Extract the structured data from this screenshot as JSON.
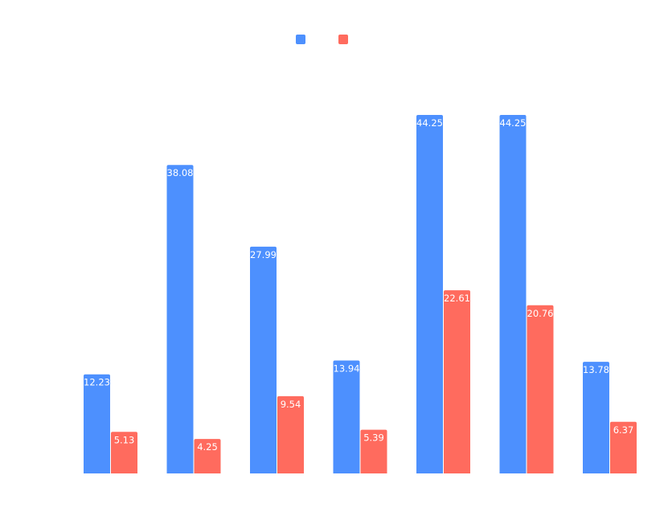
{
  "chart_data": {
    "type": "bar",
    "title": "",
    "xlabel": "",
    "ylabel": "",
    "categories": [
      "",
      "",
      "",
      "",
      "",
      "",
      ""
    ],
    "ylim": [
      0,
      50
    ],
    "grid": false,
    "legend_position": "top-center",
    "series": [
      {
        "name": "",
        "color": "#4d90fe",
        "values": [
          12.23,
          38.08,
          27.99,
          13.94,
          44.25,
          44.25,
          13.78
        ]
      },
      {
        "name": "",
        "color": "#ff6b5e",
        "values": [
          5.13,
          4.25,
          9.54,
          5.39,
          22.61,
          20.76,
          6.37
        ]
      }
    ]
  }
}
